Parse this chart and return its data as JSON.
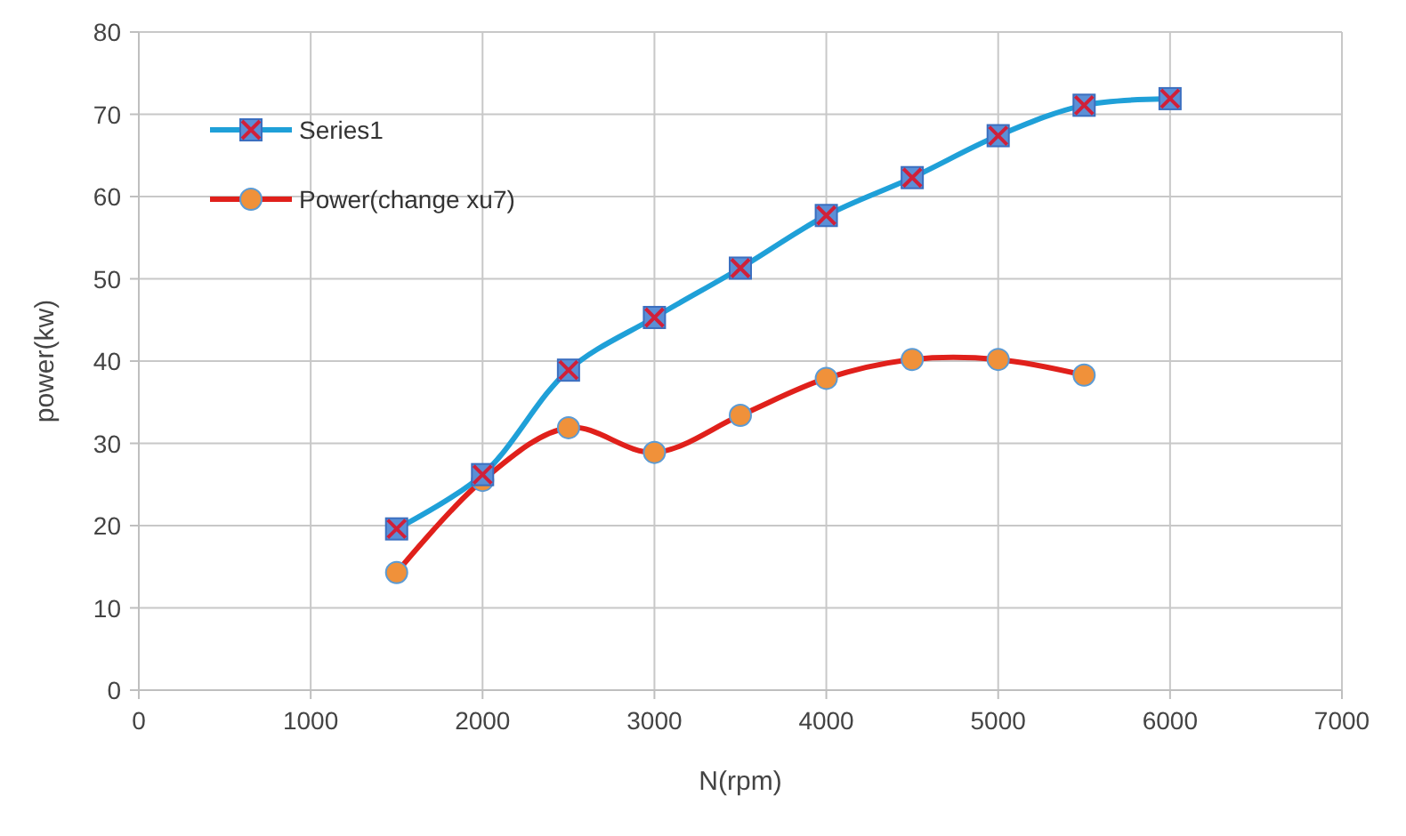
{
  "chart_data": {
    "type": "line",
    "xlabel": "N(rpm)",
    "ylabel": "power(kw)",
    "x": [
      1500,
      2000,
      2500,
      3000,
      3500,
      4000,
      4500,
      5000,
      5500,
      6000
    ],
    "series": [
      {
        "name": "Series1",
        "color": "#1fa0d8",
        "marker": "square",
        "values": [
          19.6,
          26.2,
          38.9,
          45.3,
          51.3,
          57.7,
          62.3,
          67.4,
          71.1,
          71.9
        ]
      },
      {
        "name": "Power(change xu7)",
        "color": "#e0201b",
        "marker": "circle",
        "values": [
          14.3,
          25.5,
          31.9,
          28.9,
          33.4,
          37.9,
          40.2,
          40.2,
          38.3,
          null
        ]
      }
    ],
    "xlim": [
      0,
      7000
    ],
    "xticks": [
      0,
      1000,
      2000,
      3000,
      4000,
      5000,
      6000,
      7000
    ],
    "ylim": [
      0,
      80
    ],
    "yticks": [
      0,
      10,
      20,
      30,
      40,
      50,
      60,
      70,
      80
    ],
    "grid": true,
    "legend": "top left",
    "line_style": "solid"
  }
}
